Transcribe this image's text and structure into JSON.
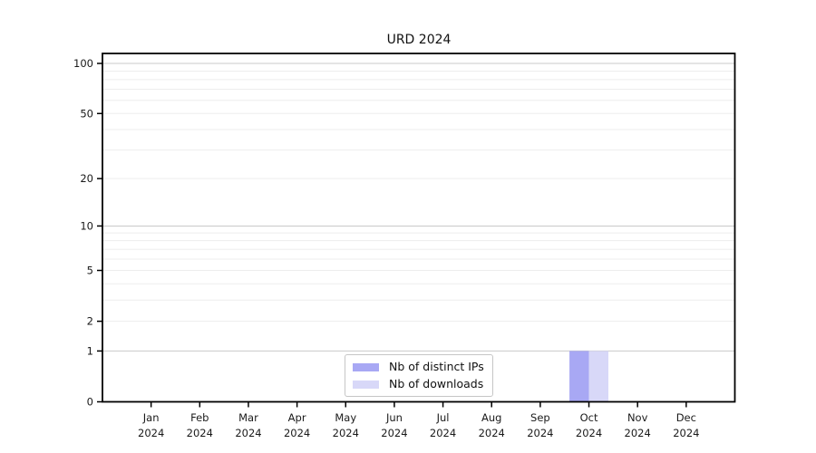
{
  "chart_data": {
    "type": "bar",
    "title": "URD 2024",
    "x_months": [
      "Jan",
      "Feb",
      "Mar",
      "Apr",
      "May",
      "Jun",
      "Jul",
      "Aug",
      "Sep",
      "Oct",
      "Nov",
      "Dec"
    ],
    "x_year": "2024",
    "series": [
      {
        "name": "Nb of distinct IPs",
        "color": "#a8a8f4",
        "values": [
          0,
          0,
          0,
          0,
          0,
          0,
          0,
          0,
          0,
          1,
          0,
          0
        ]
      },
      {
        "name": "Nb of downloads",
        "color": "#d8d8f8",
        "values": [
          0,
          0,
          0,
          0,
          0,
          0,
          0,
          0,
          0,
          1,
          0,
          0
        ]
      }
    ],
    "yscale": "symlog-log1p",
    "ylim": [
      0,
      100
    ],
    "ytick_labels": [
      "0",
      "1",
      "2",
      "5",
      "10",
      "20",
      "50",
      "100"
    ],
    "ytick_values": [
      0,
      1,
      2,
      5,
      10,
      20,
      50,
      100
    ],
    "major_gridlines": [
      1,
      10,
      100
    ],
    "minor_gridlines": [
      2,
      3,
      4,
      5,
      6,
      7,
      8,
      9,
      20,
      30,
      40,
      50,
      60,
      70,
      80,
      90
    ],
    "legend_position": "bottom-center",
    "grid": "on",
    "colors": {
      "major_grid": "#c9c9c9",
      "minor_grid": "#ededed",
      "axis": "#000000",
      "tick_text": "#1a1a1a",
      "background": "#ffffff"
    }
  }
}
